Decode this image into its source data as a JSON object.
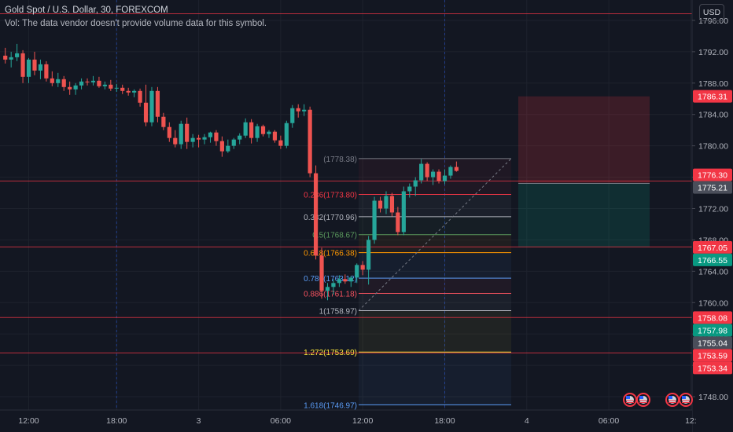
{
  "legend": {
    "symbol_line": "Gold Spot / U.S. Dollar, 30, FOREXCOM",
    "vol_line": "Vol: The data vendor doesn't provide volume data for this symbol."
  },
  "currency_button": "USD",
  "colors": {
    "up": "#26a69a",
    "down": "#ef5350",
    "bg": "#131722",
    "grid": "#1e222d"
  },
  "chart_data": {
    "type": "candlestick",
    "y_ticks": [
      1748,
      1752,
      1756,
      1760,
      1764,
      1768,
      1772,
      1776,
      1780,
      1784,
      1788,
      1792,
      1796
    ],
    "y_tick_labels": [
      "1748.00",
      "1752.00",
      "1756.00",
      "1760.00",
      "1764.00",
      "1768.00",
      "1772.00",
      "1776.00",
      "1780.00",
      "1784.00",
      "1788.00",
      "1792.00",
      "1796.00"
    ],
    "ylim": [
      1746.3,
      1798.6
    ],
    "x_labels": [
      {
        "label": "12:00",
        "slot": 4
      },
      {
        "label": "18:00",
        "slot": 19
      },
      {
        "label": "3",
        "slot": 33
      },
      {
        "label": "06:00",
        "slot": 47
      },
      {
        "label": "12:00",
        "slot": 61
      },
      {
        "label": "18:00",
        "slot": 75
      },
      {
        "label": "4",
        "slot": 89
      },
      {
        "label": "06:00",
        "slot": 103
      },
      {
        "label": "12:",
        "slot": 117
      }
    ],
    "candles": [
      [
        1791.5,
        1792.5,
        1790.5,
        1791.0
      ],
      [
        1791.0,
        1792.0,
        1790.0,
        1791.3
      ],
      [
        1791.3,
        1793.0,
        1790.8,
        1791.8
      ],
      [
        1791.8,
        1792.2,
        1788.0,
        1788.8
      ],
      [
        1788.8,
        1791.2,
        1788.0,
        1791.0
      ],
      [
        1791.0,
        1792.0,
        1789.0,
        1789.6
      ],
      [
        1789.6,
        1791.0,
        1788.5,
        1790.4
      ],
      [
        1790.4,
        1790.8,
        1788.2,
        1788.6
      ],
      [
        1788.6,
        1789.5,
        1787.6,
        1788.0
      ],
      [
        1788.0,
        1789.3,
        1787.5,
        1788.5
      ],
      [
        1788.5,
        1788.9,
        1787.0,
        1787.5
      ],
      [
        1787.5,
        1788.2,
        1786.5,
        1787.2
      ],
      [
        1787.2,
        1788.0,
        1786.5,
        1787.7
      ],
      [
        1787.7,
        1788.6,
        1787.2,
        1788.2
      ],
      [
        1788.2,
        1788.6,
        1787.7,
        1788.1
      ],
      [
        1788.1,
        1788.9,
        1787.7,
        1788.3
      ],
      [
        1788.3,
        1788.8,
        1787.4,
        1787.6
      ],
      [
        1787.6,
        1788.2,
        1787.2,
        1787.8
      ],
      [
        1787.8,
        1788.4,
        1787.0,
        1787.3
      ],
      [
        1787.3,
        1787.9,
        1786.9,
        1787.4
      ],
      [
        1787.4,
        1787.8,
        1786.6,
        1787.0
      ],
      [
        1787.0,
        1787.4,
        1786.4,
        1786.8
      ],
      [
        1786.8,
        1787.2,
        1786.2,
        1787.0
      ],
      [
        1787.0,
        1787.3,
        1785.0,
        1785.5
      ],
      [
        1785.5,
        1787.8,
        1782.5,
        1783.0
      ],
      [
        1783.0,
        1787.5,
        1782.5,
        1787.0
      ],
      [
        1787.0,
        1787.5,
        1783.0,
        1783.7
      ],
      [
        1783.7,
        1784.2,
        1782.0,
        1782.4
      ],
      [
        1782.4,
        1783.0,
        1780.5,
        1781.0
      ],
      [
        1781.0,
        1782.0,
        1779.8,
        1780.2
      ],
      [
        1780.2,
        1783.2,
        1779.6,
        1782.8
      ],
      [
        1782.8,
        1783.6,
        1779.6,
        1780.5
      ],
      [
        1780.5,
        1781.5,
        1779.8,
        1781.0
      ],
      [
        1781.0,
        1781.4,
        1779.8,
        1780.8
      ],
      [
        1780.8,
        1781.5,
        1780.2,
        1781.1
      ],
      [
        1781.1,
        1781.8,
        1780.4,
        1781.7
      ],
      [
        1781.7,
        1782.0,
        1780.0,
        1780.6
      ],
      [
        1780.6,
        1781.2,
        1778.6,
        1779.3
      ],
      [
        1779.3,
        1780.8,
        1779.1,
        1780.0
      ],
      [
        1780.0,
        1781.0,
        1779.6,
        1780.8
      ],
      [
        1780.8,
        1781.6,
        1780.2,
        1781.3
      ],
      [
        1781.3,
        1783.5,
        1781.0,
        1783.0
      ],
      [
        1783.0,
        1783.4,
        1780.3,
        1781.0
      ],
      [
        1781.0,
        1782.8,
        1780.5,
        1782.5
      ],
      [
        1782.5,
        1782.7,
        1781.2,
        1781.5
      ],
      [
        1781.5,
        1782.0,
        1781.0,
        1781.8
      ],
      [
        1781.8,
        1782.0,
        1780.4,
        1780.7
      ],
      [
        1780.7,
        1781.3,
        1779.6,
        1780.0
      ],
      [
        1780.0,
        1783.2,
        1779.7,
        1782.9
      ],
      [
        1782.9,
        1785.2,
        1782.3,
        1784.8
      ],
      [
        1784.8,
        1785.3,
        1783.6,
        1784.4
      ],
      [
        1784.4,
        1785.3,
        1783.8,
        1784.6
      ],
      [
        1784.6,
        1785.0,
        1776.0,
        1776.5
      ],
      [
        1776.5,
        1777.5,
        1765.5,
        1766.0
      ],
      [
        1766.0,
        1767.0,
        1760.5,
        1761.5
      ],
      [
        1761.5,
        1762.5,
        1760.3,
        1762.0
      ],
      [
        1762.0,
        1763.0,
        1761.0,
        1762.5
      ],
      [
        1762.5,
        1763.5,
        1762.0,
        1763.0
      ],
      [
        1763.0,
        1763.6,
        1762.4,
        1762.7
      ],
      [
        1762.7,
        1763.4,
        1762.0,
        1763.2
      ],
      [
        1763.2,
        1765.0,
        1762.5,
        1764.8
      ],
      [
        1764.8,
        1765.3,
        1763.5,
        1764.2
      ],
      [
        1764.2,
        1768.5,
        1762.3,
        1768.0
      ],
      [
        1768.0,
        1773.5,
        1767.5,
        1773.0
      ],
      [
        1773.0,
        1773.5,
        1771.5,
        1772.0
      ],
      [
        1772.0,
        1774.2,
        1771.3,
        1773.6
      ],
      [
        1773.6,
        1774.0,
        1771.0,
        1771.5
      ],
      [
        1771.5,
        1772.2,
        1768.6,
        1769.0
      ],
      [
        1769.0,
        1774.8,
        1768.6,
        1774.2
      ],
      [
        1774.2,
        1775.2,
        1773.4,
        1774.8
      ],
      [
        1774.8,
        1776.0,
        1773.6,
        1775.6
      ],
      [
        1775.6,
        1778.3,
        1775.2,
        1777.7
      ],
      [
        1777.7,
        1777.9,
        1775.5,
        1776.0
      ],
      [
        1776.0,
        1777.0,
        1775.0,
        1776.7
      ],
      [
        1776.7,
        1777.0,
        1775.2,
        1775.5
      ],
      [
        1775.5,
        1777.0,
        1775.1,
        1776.2
      ],
      [
        1776.2,
        1777.5,
        1775.8,
        1777.3
      ],
      [
        1777.3,
        1778.0,
        1776.7,
        1776.8
      ]
    ],
    "fib": {
      "levels": [
        {
          "label": "(1778.38)",
          "value": 1778.38,
          "color": "#787b86"
        },
        {
          "label": "0.236(1773.80)",
          "value": 1773.8,
          "color": "#f23645"
        },
        {
          "label": "0.382(1770.96)",
          "value": 1770.96,
          "color": "#b2b5be"
        },
        {
          "label": "0.5(1768.67)",
          "value": 1768.67,
          "color": "#5b9a5d"
        },
        {
          "label": "0.618(1766.38)",
          "value": 1766.38,
          "color": "#ff9800"
        },
        {
          "label": "0.786(1763.12)",
          "value": 1763.12,
          "color": "#5b9cf6"
        },
        {
          "label": "0.886(1761.18)",
          "value": 1761.18,
          "color": "#f7525f"
        },
        {
          "label": "1(1758.97)",
          "value": 1758.97,
          "color": "#b2b5be"
        },
        {
          "label": "1.272(1753.69)",
          "value": 1753.69,
          "color": "#ffeb3b"
        },
        {
          "label": "1.618(1746.97)",
          "value": 1746.97,
          "color": "#5b9cf6"
        }
      ]
    },
    "position": {
      "stop": 1786.31,
      "entry": 1775.21,
      "target": 1767.05
    },
    "h_lines": [
      1796.85,
      1775.5,
      1767.1,
      1758.1,
      1753.59
    ],
    "price_tags": [
      {
        "label": "1786.31",
        "value": 1786.31,
        "color": "#f23645"
      },
      {
        "label": "1776.30",
        "value": 1776.3,
        "color": "#f23645"
      },
      {
        "label": "1775.21",
        "value": 1775.21,
        "color": "#4a4e5a"
      },
      {
        "label": "1767.05",
        "value": 1767.05,
        "color": "#f23645"
      },
      {
        "label": "1766.55",
        "value": 1766.55,
        "color": "#089981"
      },
      {
        "label": "1758.08",
        "value": 1758.08,
        "color": "#f23645"
      },
      {
        "label": "1757.98",
        "value": 1757.98,
        "color": "#089981"
      },
      {
        "label": "1755.04",
        "value": 1755.04,
        "color": "#4a4e5a"
      },
      {
        "label": "1753.59",
        "value": 1753.59,
        "color": "#f23645"
      },
      {
        "label": "1753.34",
        "value": 1753.34,
        "color": "#f23645"
      }
    ]
  }
}
